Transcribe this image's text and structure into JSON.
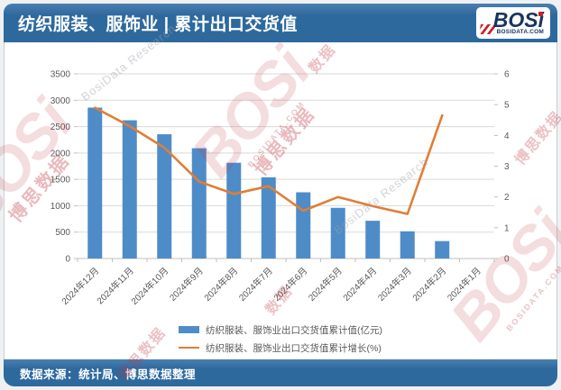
{
  "header": {
    "title": "纺织服装、服饰业 | 累计出口交货值"
  },
  "logo": {
    "brand": "BOSi",
    "domain": "BOSIDATA.COM"
  },
  "footer": {
    "source": "数据来源：统计局、博思数据整理"
  },
  "watermarks": {
    "brand": "BOSi",
    "brand_cn": "博思数据",
    "research": "BosiData Research",
    "domain": "BOSIDATA.COM",
    "data_cn": "数据"
  },
  "colors": {
    "header_bg": "#2e699e",
    "header_hi": "#4a7fb0",
    "bar": "#4e8cc8",
    "line": "#e07e35",
    "axis_text": "#595959",
    "grid": "#d9d9d9",
    "axis_line": "#bfbfbf",
    "wm_red": "#c2353f",
    "logo_navy": "#17355e",
    "logo_red": "#cc1f2c"
  },
  "chart_data": {
    "type": "bar+line",
    "categories": [
      "2024年12月",
      "2024年11月",
      "2024年10月",
      "2024年9月",
      "2024年8月",
      "2024年7月",
      "2024年6月",
      "2024年5月",
      "2024年4月",
      "2024年3月",
      "2024年2月",
      "2024年1月"
    ],
    "series": [
      {
        "name": "纺织服装、服饰业出口交货值累计值(亿元)",
        "type": "bar",
        "axis": "left",
        "values": [
          2860,
          2620,
          2355,
          2090,
          1815,
          1540,
          1255,
          960,
          715,
          515,
          330,
          null
        ]
      },
      {
        "name": "纺织服装、服饰业出口交货值累计增长(%)",
        "type": "line",
        "axis": "right",
        "values": [
          4.9,
          4.3,
          3.6,
          2.5,
          2.1,
          2.35,
          1.55,
          2.0,
          1.7,
          1.45,
          4.65,
          null
        ]
      }
    ],
    "left_axis": {
      "min": 0,
      "max": 3500,
      "step": 500
    },
    "right_axis": {
      "min": 0,
      "max": 6,
      "step": 1
    },
    "grid": "horizontal gridlines follow left axis",
    "legend_position": "bottom",
    "x_label_rotation": -45
  }
}
